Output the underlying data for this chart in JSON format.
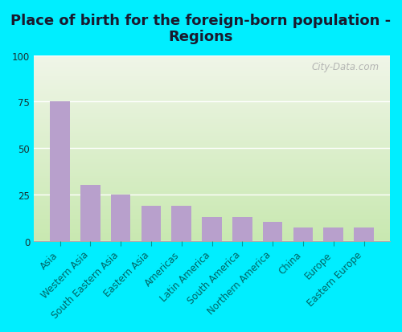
{
  "title": "Place of birth for the foreign-born population -\nRegions",
  "categories": [
    "Asia",
    "Western Asia",
    "South Eastern Asia",
    "Eastern Asia",
    "Americas",
    "Latin America",
    "South America",
    "Northern America",
    "China",
    "Europe",
    "Eastern Europe"
  ],
  "values": [
    75,
    30,
    25,
    19,
    19,
    13,
    13,
    10,
    7,
    7,
    7
  ],
  "bar_color": "#b8a0cc",
  "background_outer": "#00eeff",
  "background_inner_top": "#f0f5e8",
  "background_inner_bottom": "#c8e8b0",
  "ylim": [
    0,
    100
  ],
  "yticks": [
    0,
    25,
    50,
    75,
    100
  ],
  "title_fontsize": 13,
  "title_color": "#1a1a2e",
  "tick_label_fontsize": 8.5,
  "tick_color": "#00eeff",
  "watermark": "City-Data.com"
}
